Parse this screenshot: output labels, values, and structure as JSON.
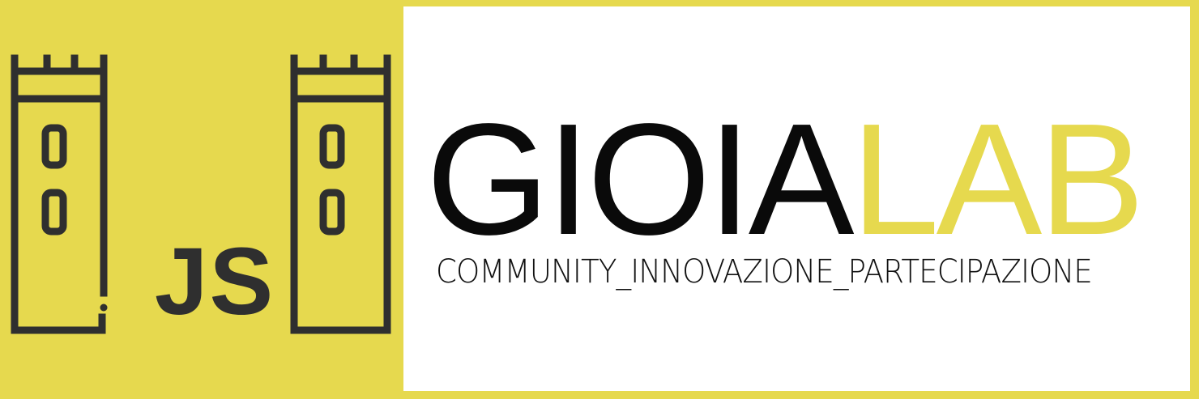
{
  "logo": {
    "badge_text": "JS",
    "word_part1": "GIOIA",
    "word_part2": "LAB",
    "tagline": "COMMUNITY_INNOVAZIONE_PARTECIPAZIONE",
    "icons": [
      "tower-icon",
      "tower-icon"
    ]
  },
  "colors": {
    "brand_yellow": "#E6D94E",
    "ink": "#2F2F2F",
    "text_black": "#0A0A0A",
    "background": "#FFFFFF"
  }
}
